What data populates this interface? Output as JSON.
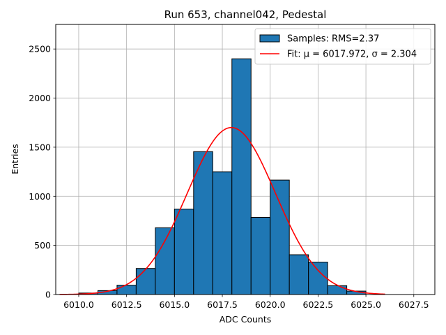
{
  "chart_data": {
    "type": "bar",
    "title": "Run 653, channel042, Pedestal",
    "xlabel": "ADC Counts",
    "ylabel": "Entries",
    "xlim": [
      6008.8,
      6028.6
    ],
    "ylim": [
      0,
      2750
    ],
    "grid": true,
    "legend_position": "top-right",
    "x_ticks": [
      6010.0,
      6012.5,
      6015.0,
      6017.5,
      6020.0,
      6022.5,
      6025.0,
      6027.5
    ],
    "x_tick_labels": [
      "6010.0",
      "6012.5",
      "6015.0",
      "6017.5",
      "6020.0",
      "6022.5",
      "6025.0",
      "6027.5"
    ],
    "y_ticks": [
      0,
      500,
      1000,
      1500,
      2000,
      2500
    ],
    "y_tick_labels": [
      "0",
      "500",
      "1000",
      "1500",
      "2000",
      "2500"
    ],
    "bin_edges": [
      6010,
      6011,
      6012,
      6013,
      6014,
      6015,
      6016,
      6017,
      6018,
      6019,
      6020,
      6021,
      6022,
      6023,
      6024,
      6025
    ],
    "series": [
      {
        "name": "Samples: RMS=2.37",
        "kind": "histogram",
        "color": "#1f77b4",
        "edge_color": "#000000",
        "values": [
          15,
          40,
          95,
          265,
          680,
          870,
          1455,
          1250,
          2400,
          785,
          1165,
          405,
          330,
          90,
          35
        ]
      },
      {
        "name": "Fit: μ = 6017.972, σ = 2.304",
        "kind": "gaussian-fit",
        "color": "#ff0000",
        "mu": 6017.972,
        "sigma": 2.304,
        "amplitude": 1700,
        "x_range": [
          6009,
          6026
        ]
      }
    ],
    "legend": [
      {
        "label": "Samples: RMS=2.37",
        "type": "patch",
        "color": "#1f77b4"
      },
      {
        "label": "Fit: μ = 6017.972, σ = 2.304",
        "type": "line",
        "color": "#ff0000"
      }
    ]
  }
}
